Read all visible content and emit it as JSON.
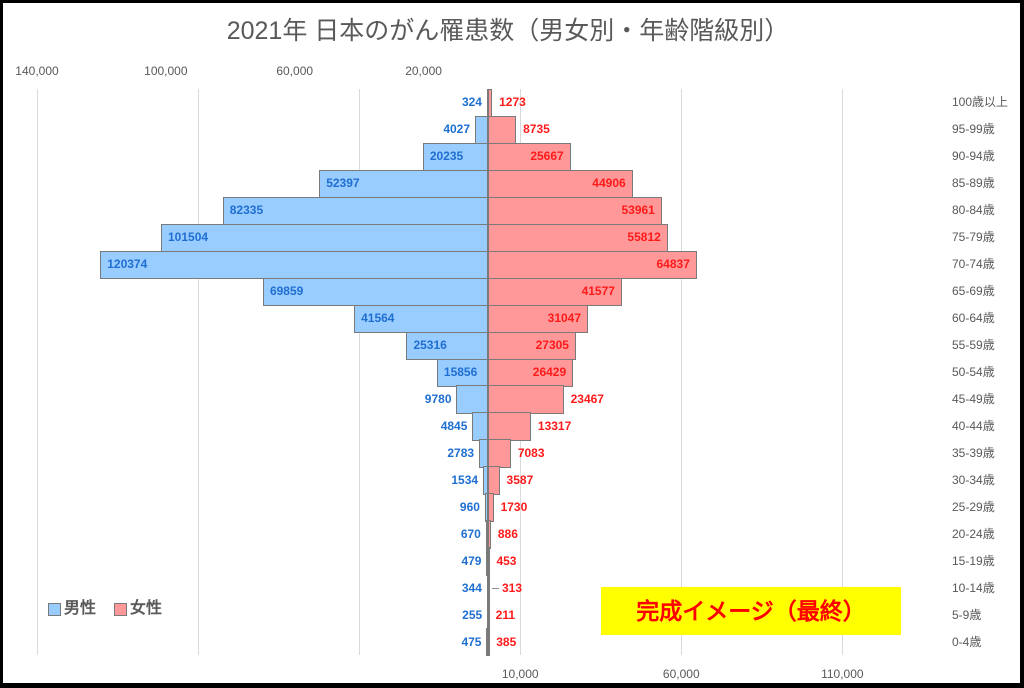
{
  "chart_data": {
    "type": "bar",
    "subtype": "population-pyramid (horizontal, mirrored)",
    "title": "2021年 日本のがん罹患数（男女別・年齢階級別）",
    "xlabel": "",
    "ylabel": "",
    "categories": [
      "100歳以上",
      "95-99歳",
      "90-94歳",
      "85-89歳",
      "80-84歳",
      "75-79歳",
      "70-74歳",
      "65-69歳",
      "60-64歳",
      "55-59歳",
      "50-54歳",
      "45-49歳",
      "40-44歳",
      "35-39歳",
      "30-34歳",
      "25-29歳",
      "20-24歳",
      "15-19歳",
      "10-14歳",
      "5-9歳",
      "0-4歳"
    ],
    "series": [
      {
        "key": "male",
        "name": "男性",
        "direction": "left",
        "color": "#99ccff",
        "label_color": "#1f6fd1",
        "values": [
          324,
          4027,
          20235,
          52397,
          82335,
          101504,
          120374,
          69859,
          41564,
          25316,
          15856,
          9780,
          4845,
          2783,
          1534,
          960,
          670,
          479,
          344,
          255,
          475
        ],
        "label_positions": [
          "outside",
          "outside",
          "inside",
          "inside",
          "inside",
          "inside",
          "inside",
          "inside",
          "inside",
          "inside",
          "inside",
          "outside",
          "outside",
          "outside",
          "outside",
          "outside",
          "outside",
          "outside",
          "outside",
          "outside",
          "outside"
        ],
        "leader_line_indices": []
      },
      {
        "key": "female",
        "name": "女性",
        "direction": "right",
        "color": "#ff9999",
        "label_color": "#ff1a1a",
        "values": [
          1273,
          8735,
          25667,
          44906,
          53961,
          55812,
          64837,
          41577,
          31047,
          27305,
          26429,
          23467,
          13317,
          7083,
          3587,
          1730,
          886,
          453,
          313,
          211,
          385
        ],
        "label_positions": [
          "outside",
          "outside",
          "inside",
          "inside",
          "inside",
          "inside",
          "inside",
          "inside",
          "inside",
          "inside",
          "inside",
          "outside",
          "outside",
          "outside",
          "outside",
          "outside",
          "outside",
          "outside",
          "outside",
          "outside",
          "outside"
        ],
        "leader_line_indices": [
          18
        ]
      }
    ],
    "xlim": [
      -140000,
      140000
    ],
    "grid": true,
    "gridlines_at": [
      -140000,
      -90000,
      -40000,
      10000,
      60000,
      110000
    ],
    "top_axis": {
      "position": "top",
      "applies_to": "男性",
      "reversed": true,
      "ticks": [
        "140,000",
        "100,000",
        "60,000",
        "20,000"
      ],
      "tick_values": [
        140000,
        100000,
        60000,
        20000
      ]
    },
    "bottom_axis": {
      "position": "bottom",
      "applies_to": "女性",
      "ticks": [
        "10,000",
        "60,000",
        "110,000"
      ],
      "tick_values": [
        10000,
        60000,
        110000
      ]
    },
    "category_axis": {
      "position": "right"
    },
    "legend": {
      "position": "bottom-left",
      "entries": [
        "男性",
        "女性"
      ]
    }
  },
  "overlay_badge": {
    "text": "完成イメージ（最終）",
    "background": "#ffff00",
    "color": "#ff0000"
  }
}
